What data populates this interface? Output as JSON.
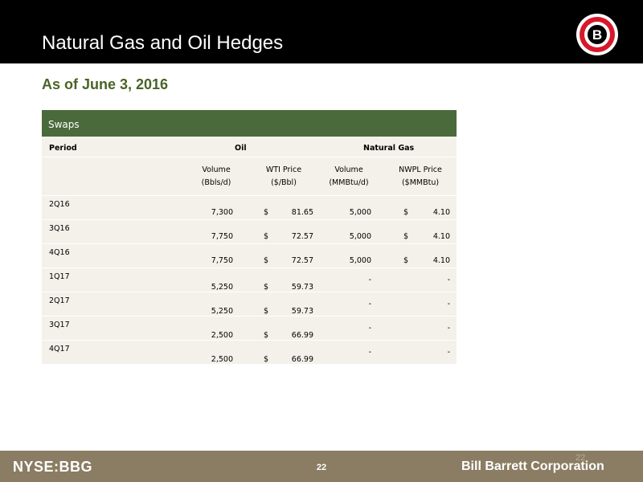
{
  "header": {
    "title": "Natural Gas and Oil Hedges",
    "logo_letter": "B"
  },
  "subtitle": "As of June 3, 2016",
  "table": {
    "section": "Swaps",
    "headers": {
      "period": "Period",
      "oil": "Oil",
      "gas": "Natural Gas"
    },
    "subheaders": {
      "volume_line1": "Volume",
      "volume_line2": "(Bbls/d)",
      "wti_line1": "WTI Price",
      "wti_line2": "($/Bbl)",
      "gas_volume_line1": "Volume",
      "gas_volume_line2": "(MMBtu/d)",
      "nwpl_line1": "NWPL Price",
      "nwpl_line2": "($MMBtu)"
    },
    "rows": [
      {
        "period": "2Q16",
        "oil_volume": "7,300",
        "wti_dollar": "$",
        "wti_price": "81.65",
        "gas_volume": "5,000",
        "nwpl_dollar": "$",
        "nwpl_price": "4.10"
      },
      {
        "period": "3Q16",
        "oil_volume": "7,750",
        "wti_dollar": "$",
        "wti_price": "72.57",
        "gas_volume": "5,000",
        "nwpl_dollar": "$",
        "nwpl_price": "4.10"
      },
      {
        "period": "4Q16",
        "oil_volume": "7,750",
        "wti_dollar": "$",
        "wti_price": "72.57",
        "gas_volume": "5,000",
        "nwpl_dollar": "$",
        "nwpl_price": "4.10"
      },
      {
        "period": "1Q17",
        "oil_volume": "5,250",
        "wti_dollar": "$",
        "wti_price": "59.73",
        "gas_volume": "-",
        "nwpl_dollar": "",
        "nwpl_price": "-"
      },
      {
        "period": "2Q17",
        "oil_volume": "5,250",
        "wti_dollar": "$",
        "wti_price": "59.73",
        "gas_volume": "-",
        "nwpl_dollar": "",
        "nwpl_price": "-"
      },
      {
        "period": "3Q17",
        "oil_volume": "2,500",
        "wti_dollar": "$",
        "wti_price": "66.99",
        "gas_volume": "-",
        "nwpl_dollar": "",
        "nwpl_price": "-"
      },
      {
        "period": "4Q17",
        "oil_volume": "2,500",
        "wti_dollar": "$",
        "wti_price": "66.99",
        "gas_volume": "-",
        "nwpl_dollar": "",
        "nwpl_price": "-"
      }
    ]
  },
  "footer": {
    "ticker": "NYSE:BBG",
    "page_number": "22",
    "ghost_page_number": "22",
    "company": "Bill Barrett Corporation"
  },
  "colors": {
    "header_bg": "#000000",
    "subtitle": "#4a6326",
    "swaps_bar": "#4a6a3b",
    "table_bg": "#f3f1ea",
    "footer_bg": "#8b7d63",
    "logo_red": "#d7182a"
  }
}
